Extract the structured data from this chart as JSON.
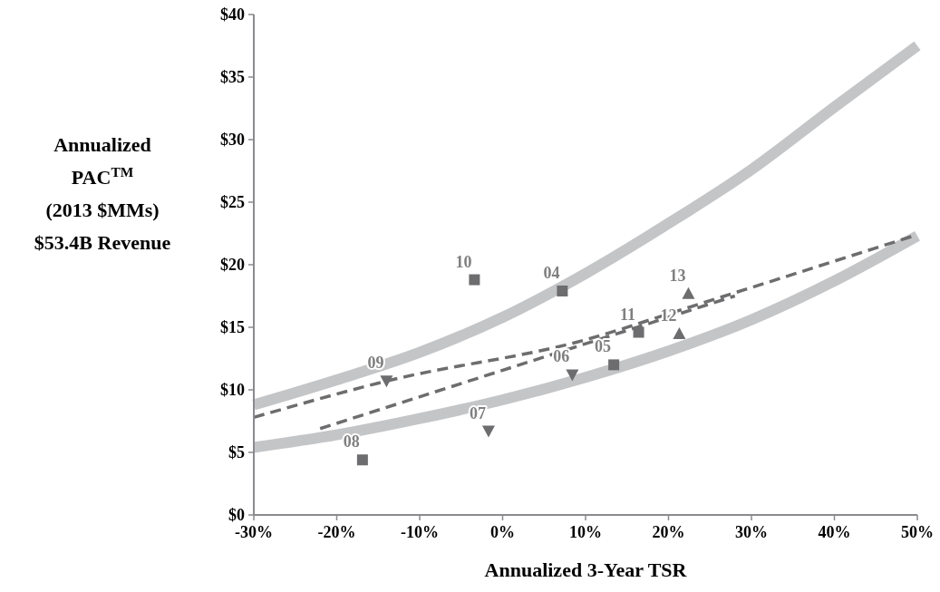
{
  "chart_data": {
    "type": "scatter",
    "xlabel": "Annualized 3-Year TSR",
    "ylabel": "Annualized\nPAC$^{TM}$\n(2013 $MMs)\n$53.4B Revenue",
    "xlim": [
      -30,
      50
    ],
    "ylim": [
      0,
      40
    ],
    "xticks": [
      {
        "value": -30,
        "label": "-30%"
      },
      {
        "value": -20,
        "label": "-20%"
      },
      {
        "value": -10,
        "label": "-10%"
      },
      {
        "value": 0,
        "label": "0%"
      },
      {
        "value": 10,
        "label": "10%"
      },
      {
        "value": 20,
        "label": "20%"
      },
      {
        "value": 30,
        "label": "30%"
      },
      {
        "value": 40,
        "label": "40%"
      },
      {
        "value": 50,
        "label": "50%"
      }
    ],
    "yticks": [
      {
        "value": 0,
        "label": "$0"
      },
      {
        "value": 5,
        "label": "$5"
      },
      {
        "value": 10,
        "label": "$10"
      },
      {
        "value": 15,
        "label": "$15"
      },
      {
        "value": 20,
        "label": "$20"
      },
      {
        "value": 25,
        "label": "$25"
      },
      {
        "value": 30,
        "label": "$30"
      },
      {
        "value": 35,
        "label": "$35"
      },
      {
        "value": 40,
        "label": "$40"
      }
    ],
    "grid": false,
    "series": [
      {
        "type": "line",
        "color": "#c4c5c7",
        "line_style": "solid",
        "marker": "none",
        "x": [
          -30,
          -20,
          -10,
          0,
          10,
          20,
          30,
          40,
          50
        ],
        "values": [
          8.8,
          10.8,
          13.0,
          15.8,
          19.3,
          23.3,
          27.6,
          32.6,
          37.5
        ]
      },
      {
        "type": "line",
        "color": "#c4c5c7",
        "line_style": "solid",
        "marker": "none",
        "x": [
          -30,
          -20,
          -10,
          0,
          10,
          20,
          30,
          40,
          50
        ],
        "values": [
          5.4,
          6.4,
          7.7,
          9.2,
          11.0,
          13.1,
          15.6,
          18.7,
          22.3
        ]
      },
      {
        "type": "line",
        "color": "#6d6d6f",
        "line_style": "dashed",
        "marker": "none",
        "x": [
          -30,
          -14,
          10,
          22,
          50
        ],
        "values": [
          7.8,
          10.7,
          14.0,
          16.5,
          22.4
        ]
      },
      {
        "type": "line",
        "color": "#6d6d6f",
        "line_style": "dashed",
        "marker": "none",
        "x": [
          -22,
          28
        ],
        "values": [
          6.9,
          17.5
        ]
      },
      {
        "color": "#6d6d6f",
        "marker": "square",
        "x": [
          -3.4,
          7.2,
          16.4,
          13.4,
          -16.9
        ],
        "values": [
          18.8,
          17.9,
          14.6,
          12.0,
          4.4
        ]
      },
      {
        "color": "#6d6d6f",
        "marker": "triangle-down",
        "x": [
          8.4,
          -14.0,
          -1.7
        ],
        "values": [
          11.2,
          10.7,
          6.7
        ]
      },
      {
        "color": "#6d6d6f",
        "marker": "triangle",
        "x": [
          22.4,
          21.3
        ],
        "values": [
          17.7,
          14.5
        ]
      }
    ],
    "annotations": [
      {
        "text": "10",
        "x": -3.4,
        "y": 18.8
      },
      {
        "text": "04",
        "x": 7.2,
        "y": 17.9
      },
      {
        "text": "11",
        "x": 16.4,
        "y": 14.6
      },
      {
        "text": "05",
        "x": 13.4,
        "y": 12.0
      },
      {
        "text": "08",
        "x": -16.9,
        "y": 4.4
      },
      {
        "text": "06",
        "x": 8.4,
        "y": 11.2
      },
      {
        "text": "09",
        "x": -14.0,
        "y": 10.7
      },
      {
        "text": "07",
        "x": -1.7,
        "y": 6.7
      },
      {
        "text": "13",
        "x": 22.4,
        "y": 17.7
      },
      {
        "text": "12",
        "x": 21.3,
        "y": 14.5
      }
    ]
  }
}
